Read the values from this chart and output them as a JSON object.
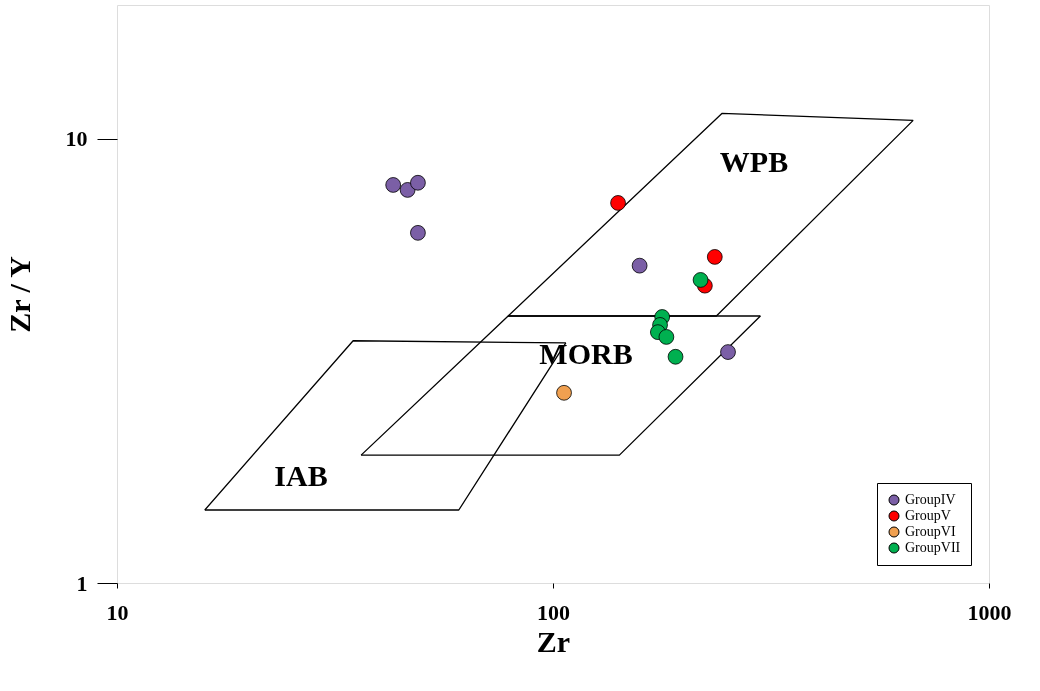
{
  "chart_data": {
    "type": "scatter",
    "xlabel": "Zr",
    "ylabel": "Zr / Y",
    "log": "xy",
    "xlim": [
      10,
      1000
    ],
    "ylim": [
      1,
      20
    ],
    "xticks": [
      10,
      100,
      {
        "value": 1000,
        "label": "1000"
      }
    ],
    "yticks": [
      1,
      10
    ],
    "grid": false,
    "legend": "bottom right",
    "marker": "circle",
    "series": [
      {
        "name": "GroupIV",
        "color": "#7b5fa6",
        "x": [
          43.0,
          46.4,
          49.0,
          49.0,
          158,
          252
        ],
        "values": [
          7.87,
          7.67,
          7.96,
          6.14,
          5.18,
          3.31
        ]
      },
      {
        "name": "GroupV",
        "color": "#ff0000",
        "x": [
          141,
          235,
          223
        ],
        "values": [
          7.17,
          5.42,
          4.67
        ]
      },
      {
        "name": "GroupVI",
        "color": "#f0a050",
        "x": [
          106
        ],
        "values": [
          2.68
        ]
      },
      {
        "name": "GroupVII",
        "color": "#00b050",
        "x": [
          218,
          178,
          176,
          174,
          182,
          191
        ],
        "values": [
          4.81,
          3.97,
          3.81,
          3.67,
          3.58,
          3.23
        ]
      },
      {
        "type": "line",
        "color": "#000000",
        "line_style": "solid",
        "marker": "none",
        "x": [
          78.9,
          244,
          670
        ],
        "values": [
          3.99,
          11.4,
          11.0
        ]
      },
      {
        "type": "line",
        "color": "#000000",
        "line_style": "solid",
        "marker": "none",
        "x": [
          78.9,
          237,
          670
        ],
        "values": [
          3.99,
          3.99,
          11.0
        ]
      },
      {
        "type": "line",
        "color": "#000000",
        "line_style": "solid",
        "marker": "none",
        "x": [
          36.3,
          78.9,
          299
        ],
        "values": [
          1.94,
          3.99,
          3.99
        ]
      },
      {
        "type": "line",
        "color": "#000000",
        "line_style": "solid",
        "marker": "none",
        "x": [
          36.3,
          142,
          299
        ],
        "values": [
          1.94,
          1.94,
          3.99
        ]
      },
      {
        "type": "line",
        "color": "#000000",
        "line_style": "solid",
        "marker": "none",
        "x": [
          15.9,
          34.8,
          107
        ],
        "values": [
          1.46,
          3.51,
          3.47
        ]
      },
      {
        "type": "line",
        "color": "#000000",
        "line_style": "solid",
        "marker": "none",
        "x": [
          15.9,
          60.8,
          107
        ],
        "values": [
          1.46,
          1.46,
          3.47
        ]
      }
    ],
    "annotations": [
      "WPB",
      "MORB",
      "IAB"
    ]
  }
}
